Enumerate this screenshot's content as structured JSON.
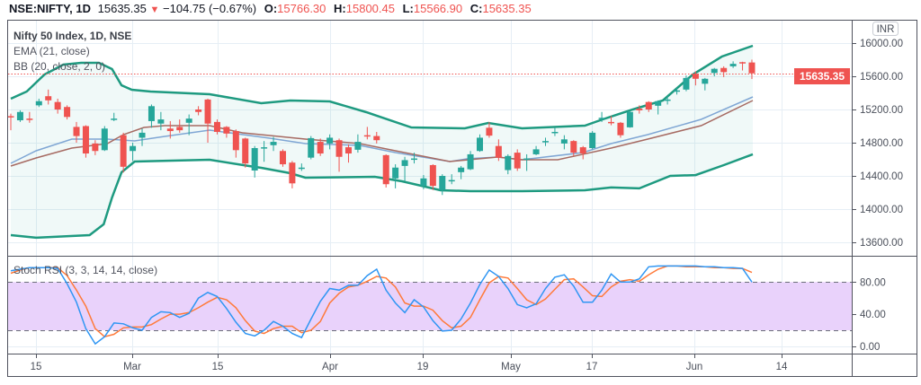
{
  "header": {
    "symbol": "NSE:NIFTY, 1D",
    "last": "15635.35",
    "change": "−104.75 (−0.67%)",
    "o_label": "O:",
    "o": "15766.30",
    "h_label": "H:",
    "h": "15800.45",
    "l_label": "L:",
    "l": "15566.90",
    "c_label": "C:",
    "c": "15635.35",
    "down_icon": "triangle-down"
  },
  "legend": {
    "title": "Nifty 50 Index, 1D, NSE",
    "ema": "EMA (21, close)",
    "bb": "BB (20, close, 2, 0)",
    "stoch": "Stoch RSI (3, 3, 14, 14, close)"
  },
  "price_axis": {
    "currency": "INR",
    "ticks": [
      "16000.00",
      "15600.00",
      "15200.00",
      "14800.00",
      "14400.00",
      "14000.00",
      "13600.00"
    ],
    "last_price_label": "15635.35"
  },
  "stoch_axis": {
    "ticks": [
      "80.00",
      "40.00",
      "0.00"
    ]
  },
  "time_axis": {
    "labels": [
      "15",
      "Mar",
      "15",
      "Apr",
      "19",
      "May",
      "17",
      "Jun",
      "14"
    ]
  },
  "colors": {
    "up": "#26a69a",
    "down": "#ef5350",
    "band": "#1e9a80",
    "basis": "#7fa6d4",
    "ema": "#a66a62",
    "k": "#2f96f3",
    "d": "#ff7a3a",
    "stoch_fill": "#e9d2fb"
  },
  "chart_data": [
    {
      "type": "candlestick",
      "title": "Nifty 50 Index, 1D, NSE",
      "ylim": [
        13450,
        16300
      ],
      "ohlc": [
        [
          15120,
          15150,
          14950,
          15105
        ],
        [
          15070,
          15190,
          15050,
          15170
        ],
        [
          15090,
          15170,
          15040,
          15080
        ],
        [
          15250,
          15330,
          15230,
          15300
        ],
        [
          15360,
          15440,
          15260,
          15310
        ],
        [
          15290,
          15330,
          15150,
          15200
        ],
        [
          15230,
          15250,
          15080,
          15110
        ],
        [
          14990,
          15050,
          14800,
          14880
        ],
        [
          15000,
          15010,
          14620,
          14670
        ],
        [
          14790,
          14830,
          14650,
          14700
        ],
        [
          14710,
          15000,
          14700,
          14970
        ],
        [
          15080,
          15160,
          15060,
          15090
        ],
        [
          14890,
          14920,
          14440,
          14510
        ],
        [
          14700,
          14800,
          14580,
          14760
        ],
        [
          14860,
          14970,
          14760,
          14920
        ],
        [
          15060,
          15260,
          14980,
          15240
        ],
        [
          15030,
          15170,
          14950,
          15080
        ],
        [
          14970,
          15060,
          14850,
          14940
        ],
        [
          14990,
          15080,
          14920,
          14950
        ],
        [
          15040,
          15140,
          14890,
          15090
        ],
        [
          15200,
          15240,
          15130,
          15170
        ],
        [
          15320,
          15330,
          14800,
          15030
        ],
        [
          15050,
          15080,
          14900,
          14930
        ],
        [
          14990,
          15000,
          14860,
          14910
        ],
        [
          14940,
          14960,
          14620,
          14710
        ],
        [
          14850,
          14860,
          14500,
          14550
        ],
        [
          14465,
          14760,
          14380,
          14735
        ],
        [
          14740,
          14820,
          14570,
          14745
        ],
        [
          14770,
          14870,
          14700,
          14810
        ],
        [
          14700,
          14720,
          14510,
          14540
        ],
        [
          14560,
          14580,
          14250,
          14310
        ],
        [
          14490,
          14550,
          14460,
          14500
        ],
        [
          14620,
          14880,
          14600,
          14855
        ],
        [
          14810,
          14850,
          14640,
          14670
        ],
        [
          14790,
          14900,
          14720,
          14860
        ],
        [
          14830,
          14850,
          14450,
          14630
        ],
        [
          14745,
          14780,
          14560,
          14670
        ],
        [
          14715,
          14900,
          14680,
          14810
        ],
        [
          14890,
          14990,
          14840,
          14880
        ],
        [
          14880,
          14930,
          14790,
          14830
        ],
        [
          14650,
          14660,
          14260,
          14300
        ],
        [
          14370,
          14540,
          14250,
          14500
        ],
        [
          14520,
          14630,
          14340,
          14590
        ],
        [
          14600,
          14680,
          14550,
          14610
        ],
        [
          14280,
          14410,
          14240,
          14370
        ],
        [
          14530,
          14540,
          14230,
          14280
        ],
        [
          14230,
          14420,
          14170,
          14400
        ],
        [
          14340,
          14420,
          14300,
          14350
        ],
        [
          14445,
          14520,
          14360,
          14500
        ],
        [
          14480,
          14700,
          14470,
          14660
        ],
        [
          14700,
          14900,
          14690,
          14860
        ],
        [
          14980,
          15050,
          14860,
          14885
        ],
        [
          14760,
          14840,
          14580,
          14620
        ],
        [
          14470,
          14660,
          14420,
          14640
        ],
        [
          14680,
          14720,
          14460,
          14490
        ],
        [
          14600,
          14660,
          14460,
          14610
        ],
        [
          14660,
          14760,
          14650,
          14720
        ],
        [
          14810,
          14860,
          14760,
          14820
        ],
        [
          14920,
          14980,
          14880,
          14930
        ],
        [
          14790,
          14890,
          14720,
          14840
        ],
        [
          14820,
          14830,
          14640,
          14680
        ],
        [
          14745,
          14760,
          14600,
          14670
        ],
        [
          14735,
          14940,
          14720,
          14920
        ],
        [
          15090,
          15170,
          15050,
          15100
        ],
        [
          15050,
          15120,
          15010,
          15040
        ],
        [
          15040,
          15050,
          14860,
          14890
        ],
        [
          14985,
          15180,
          14980,
          15170
        ],
        [
          15210,
          15250,
          15150,
          15190
        ],
        [
          15290,
          15300,
          15170,
          15200
        ],
        [
          15245,
          15310,
          15140,
          15300
        ],
        [
          15310,
          15360,
          15260,
          15320
        ],
        [
          15420,
          15460,
          15380,
          15430
        ],
        [
          15440,
          15610,
          15420,
          15580
        ],
        [
          15630,
          15660,
          15490,
          15570
        ],
        [
          15510,
          15580,
          15430,
          15570
        ],
        [
          15640,
          15700,
          15600,
          15690
        ],
        [
          15700,
          15720,
          15590,
          15650
        ],
        [
          15720,
          15780,
          15700,
          15750
        ],
        [
          15770,
          15775,
          15670,
          15760
        ],
        [
          15766.3,
          15800.45,
          15566.9,
          15635.35
        ]
      ],
      "bb_upper": [
        [
          0,
          15330
        ],
        [
          1.7,
          15416
        ],
        [
          3.6,
          15622
        ],
        [
          5.6,
          15741
        ],
        [
          7.5,
          15762
        ],
        [
          9.4,
          15762
        ],
        [
          10.8,
          15687
        ],
        [
          11.8,
          15492
        ],
        [
          12.9,
          15438
        ],
        [
          14.9,
          15416
        ],
        [
          21.2,
          15384
        ],
        [
          26.7,
          15276
        ],
        [
          29.8,
          15308
        ],
        [
          34,
          15297
        ],
        [
          37.9,
          15168
        ],
        [
          42.7,
          14984
        ],
        [
          48.4,
          14973
        ],
        [
          50.9,
          15038
        ],
        [
          54.5,
          14973
        ],
        [
          61.2,
          15005
        ],
        [
          63.1,
          15081
        ],
        [
          66.3,
          15200
        ],
        [
          69.5,
          15308
        ],
        [
          72.7,
          15622
        ],
        [
          75.8,
          15838
        ],
        [
          79.1,
          15968
        ]
      ],
      "bb_lower": [
        [
          0,
          13687
        ],
        [
          2.7,
          13655
        ],
        [
          8.4,
          13687
        ],
        [
          9.9,
          13817
        ],
        [
          10.8,
          14141
        ],
        [
          11.8,
          14443
        ],
        [
          13.2,
          14573
        ],
        [
          21.2,
          14595
        ],
        [
          25.4,
          14519
        ],
        [
          26.7,
          14497
        ],
        [
          29.8,
          14432
        ],
        [
          31.4,
          14378
        ],
        [
          38.8,
          14389
        ],
        [
          41.7,
          14335
        ],
        [
          45.8,
          14227
        ],
        [
          49,
          14216
        ],
        [
          54.5,
          14216
        ],
        [
          61.2,
          14227
        ],
        [
          64,
          14260
        ],
        [
          67,
          14250
        ],
        [
          70.3,
          14400
        ],
        [
          73,
          14410
        ],
        [
          76,
          14530
        ],
        [
          79.1,
          14660
        ]
      ],
      "bb_basis": [
        [
          0,
          14551
        ],
        [
          2.7,
          14703
        ],
        [
          6.5,
          14843
        ],
        [
          10.3,
          14843
        ],
        [
          13.2,
          14822
        ],
        [
          16.4,
          14876
        ],
        [
          21.2,
          14951
        ],
        [
          27.6,
          14854
        ],
        [
          31.4,
          14789
        ],
        [
          37.2,
          14768
        ],
        [
          41,
          14681
        ],
        [
          46.8,
          14573
        ],
        [
          48.7,
          14606
        ],
        [
          51.9,
          14627
        ],
        [
          54.5,
          14595
        ],
        [
          61,
          14681
        ],
        [
          64,
          14789
        ],
        [
          67.9,
          14897
        ],
        [
          73.6,
          15081
        ],
        [
          79.1,
          15351
        ]
      ],
      "ema21": [
        [
          0,
          14519
        ],
        [
          2.7,
          14616
        ],
        [
          6.5,
          14735
        ],
        [
          10.3,
          14789
        ],
        [
          12,
          14897
        ],
        [
          14.2,
          14984
        ],
        [
          16.4,
          15005
        ],
        [
          21.2,
          15005
        ],
        [
          24.7,
          14919
        ],
        [
          27.6,
          14887
        ],
        [
          31.4,
          14843
        ],
        [
          37.2,
          14789
        ],
        [
          41,
          14703
        ],
        [
          46.8,
          14573
        ],
        [
          51.9,
          14627
        ],
        [
          54.5,
          14595
        ],
        [
          58.3,
          14595
        ],
        [
          64,
          14735
        ],
        [
          67.9,
          14843
        ],
        [
          73.6,
          15005
        ],
        [
          79.1,
          15308
        ]
      ],
      "last_price": 15635.35
    },
    {
      "type": "line",
      "title": "Stoch RSI (3, 3, 14, 14, close)",
      "ylim": [
        0,
        100
      ],
      "band": [
        20,
        80
      ],
      "series": [
        {
          "name": "K",
          "values": [
            94,
            96,
            98,
            98,
            98,
            97,
            78,
            55,
            22,
            3,
            12,
            29,
            28,
            23,
            20,
            36,
            43,
            42,
            36,
            41,
            60,
            67,
            62,
            47,
            30,
            16,
            13,
            20,
            31,
            25,
            16,
            11,
            34,
            56,
            72,
            70,
            76,
            76,
            88,
            96,
            70,
            54,
            42,
            58,
            49,
            32,
            19,
            20,
            34,
            54,
            77,
            95,
            87,
            72,
            52,
            48,
            53,
            72,
            86,
            89,
            75,
            55,
            55,
            70,
            90,
            80,
            80,
            84,
            99,
            100,
            100,
            100,
            100,
            100,
            99,
            99,
            98,
            98,
            97,
            80
          ]
        },
        {
          "name": "D",
          "values": [
            91,
            95,
            98,
            98,
            98,
            98,
            88,
            70,
            50,
            22,
            12,
            15,
            23,
            24,
            24,
            27,
            34,
            40,
            40,
            42,
            48,
            55,
            61,
            58,
            48,
            32,
            19,
            16,
            22,
            25,
            25,
            17,
            20,
            31,
            54,
            66,
            74,
            76,
            81,
            87,
            85,
            74,
            54,
            50,
            50,
            45,
            32,
            23,
            25,
            36,
            58,
            79,
            87,
            85,
            72,
            58,
            52,
            59,
            71,
            83,
            84,
            74,
            63,
            62,
            74,
            81,
            83,
            81,
            89,
            96,
            100,
            100,
            99,
            99,
            99,
            98,
            98,
            97,
            97,
            92
          ]
        }
      ]
    }
  ]
}
